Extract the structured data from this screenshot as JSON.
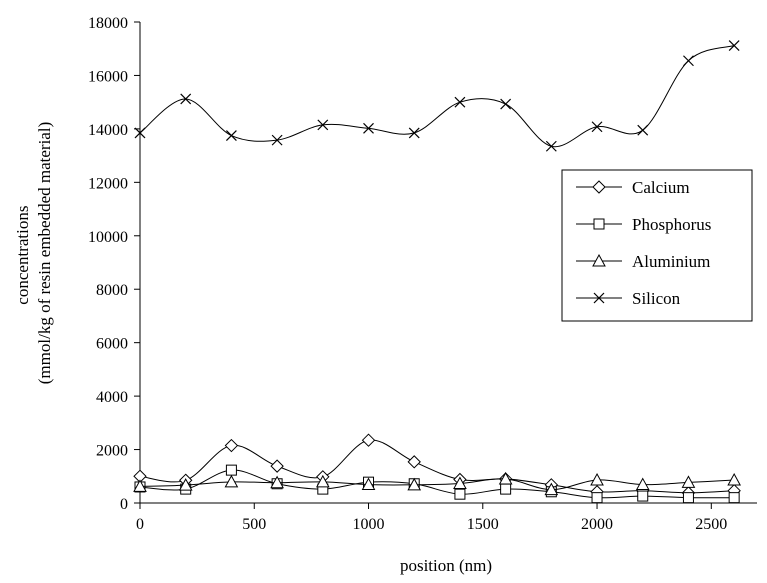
{
  "chart_data": {
    "type": "line",
    "xlabel": "position (nm)",
    "ylabel_lines": [
      "concentrations",
      "(mmol/kg of resin embedded material)"
    ],
    "xlim": [
      0,
      2700
    ],
    "ylim": [
      0,
      18000
    ],
    "x_ticks": [
      0,
      500,
      1000,
      1500,
      2000,
      2500
    ],
    "y_ticks": [
      0,
      2000,
      4000,
      6000,
      8000,
      10000,
      12000,
      14000,
      16000,
      18000
    ],
    "x_tick_labels": [
      "0",
      "500",
      "1000",
      "1500",
      "2000",
      "2500"
    ],
    "y_tick_labels": [
      "0",
      "2000",
      "4000",
      "6000",
      "8000",
      "10000",
      "12000",
      "14000",
      "16000",
      "18000"
    ],
    "grid": false,
    "legend_position": "right",
    "smooth_lines": true,
    "x": [
      0,
      200,
      400,
      600,
      800,
      1000,
      1200,
      1400,
      1600,
      1800,
      2000,
      2200,
      2400,
      2600
    ],
    "series": [
      {
        "name": "Calcium",
        "marker": "diamond",
        "values": [
          1000,
          850,
          2150,
          1380,
          980,
          2350,
          1540,
          880,
          900,
          680,
          420,
          460,
          380,
          460
        ]
      },
      {
        "name": "Phosphorus",
        "marker": "square",
        "values": [
          600,
          520,
          1230,
          720,
          520,
          780,
          720,
          330,
          520,
          420,
          200,
          260,
          200,
          200
        ]
      },
      {
        "name": "Aluminium",
        "marker": "triangle",
        "values": [
          620,
          670,
          790,
          760,
          790,
          690,
          680,
          730,
          900,
          500,
          860,
          690,
          770,
          860
        ]
      },
      {
        "name": "Silicon",
        "marker": "x",
        "values": [
          13850,
          15120,
          13750,
          13580,
          14150,
          14020,
          13850,
          15000,
          14930,
          13350,
          14080,
          13950,
          16550,
          17120
        ]
      }
    ]
  }
}
